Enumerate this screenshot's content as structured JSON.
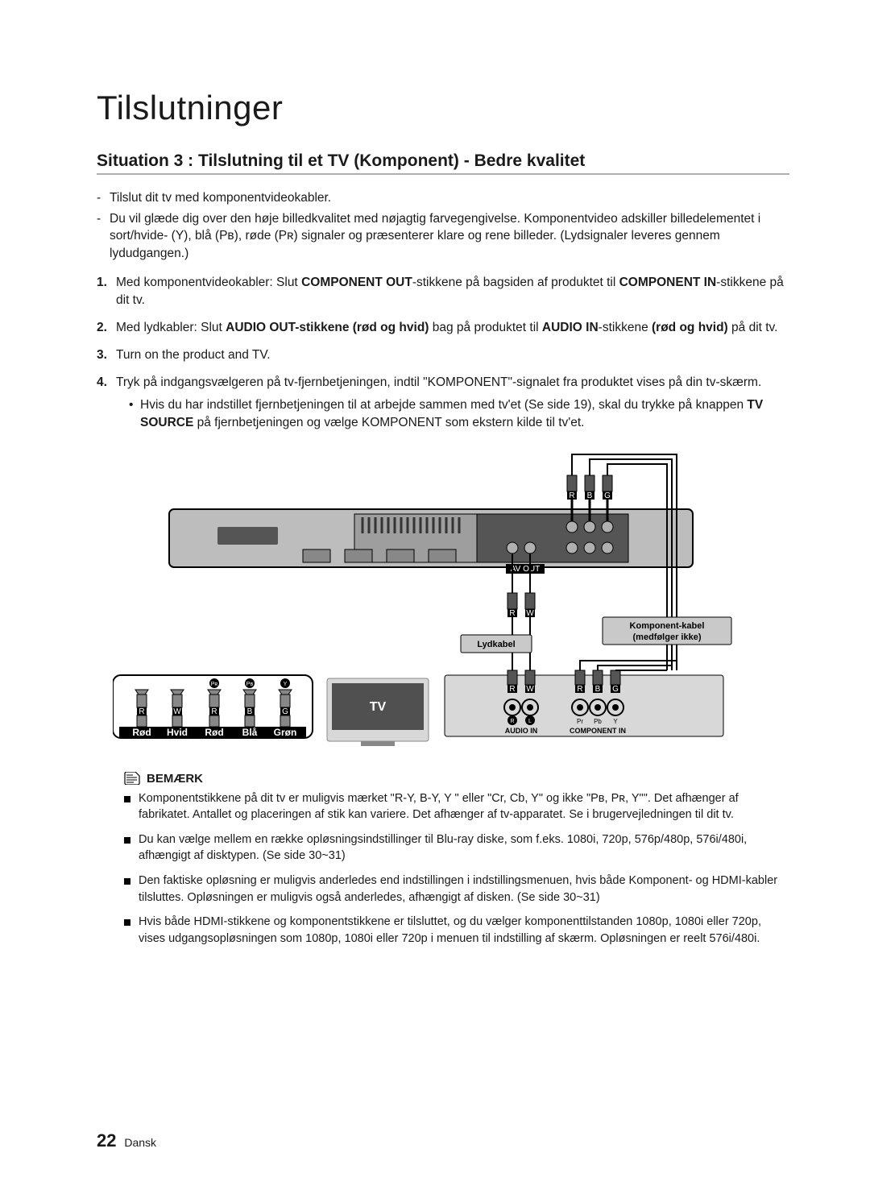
{
  "title": "Tilslutninger",
  "subtitle": "Situation 3 : Tilslutning til et TV (Komponent) - Bedre kvalitet",
  "intro": [
    "Tilslut dit tv med komponentvideokabler.",
    "Du vil glæde dig over den høje billedkvalitet med nøjagtig farvegengivelse. Komponentvideo adskiller billedelementet i sort/hvide- (Y), blå (Pʙ), røde (Pʀ) signaler og præsenterer klare og rene billeder. (Lydsignaler leveres gennem lydudgangen.)"
  ],
  "steps": [
    {
      "n": "1.",
      "html": "Med komponentvideokabler: Slut <b>COMPONENT OUT</b>-stikkene på bagsiden af produktet til <b>COMPONENT IN</b>-stikkene på dit tv."
    },
    {
      "n": "2.",
      "html": "Med lydkabler: Slut <b>AUDIO OUT-stikkene (rød og hvid)</b> bag på produktet til <b>AUDIO IN</b>-stikkene <b>(rød og hvid)</b> på dit tv."
    },
    {
      "n": "3.",
      "html": "Turn on the product and TV."
    },
    {
      "n": "4.",
      "html": "Tryk på indgangsvælgeren på tv-fjernbetjeningen, indtil \"KOMPONENT\"-signalet fra produktet vises på din tv-skærm."
    }
  ],
  "sub_bullet": "Hvis du har indstillet fjernbetjeningen til at arbejde sammen med tv'et (Se side 19), skal du trykke på knappen <b>TV SOURCE</b> på fjernbetjeningen og vælge KOMPONENT som ekstern kilde til tv'et.",
  "diagram": {
    "audio_cable_label": "Lydkabel",
    "component_cable_label_1": "Komponent-kabel",
    "component_cable_label_2": "(medfølger ikke)",
    "tv_label": "TV",
    "audio_in": "AUDIO IN",
    "component_in": "COMPONENT IN",
    "plug_group": {
      "top_small": [
        "Pʀ",
        "Pʙ",
        "Y"
      ],
      "rows": [
        "R",
        "W",
        "R",
        "B",
        "G"
      ],
      "bottom": [
        "Rød",
        "Hvid",
        "Rød",
        "Blå",
        "Grøn"
      ]
    },
    "av_out": "AV OUT",
    "tv_plugs": {
      "audio": [
        "R",
        "L"
      ],
      "rbg": [
        "R",
        "B",
        "G"
      ],
      "rbg_small": [
        "Pr",
        "Pb",
        "Y"
      ]
    },
    "top_rbg": [
      "R",
      "B",
      "G"
    ],
    "mid_rw": [
      "R",
      "W"
    ],
    "colors": {
      "black": "#000000",
      "grey_panel": "#c0c0c0",
      "dark_panel": "#606060",
      "light_panel": "#d8d8d8",
      "white": "#ffffff"
    }
  },
  "note_header": "BEMÆRK",
  "notes": [
    "Komponentstikkene på dit tv er muligvis mærket \"R-Y, B-Y, Y \" eller \"Cr, Cb, Y\" og ikke \"Pʙ, Pʀ, Y\"\". Det afhænger af fabrikatet. Antallet og placeringen af stik kan variere. Det afhænger af tv-apparatet. Se i brugervejledningen til dit tv.",
    "Du kan vælge mellem en række opløsningsindstillinger til Blu-ray diske, som f.eks. 1080i, 720p, 576p/480p, 576i/480i, afhængigt af disktypen. (Se side 30~31)",
    "Den faktiske opløsning er muligvis anderledes end indstillingen i indstillingsmenuen, hvis både Komponent- og HDMI-kabler tilsluttes. Opløsningen er muligvis også anderledes, afhængigt af disken. (Se side 30~31)",
    "Hvis både HDMI-stikkene og komponentstikkene er tilsluttet, og du vælger komponenttilstanden 1080p, 1080i eller 720p, vises udgangsopløsningen som 1080p, 1080i eller 720p i menuen til indstilling af skærm. Opløsningen er reelt 576i/480i."
  ],
  "footer": {
    "page": "22",
    "lang": "Dansk"
  }
}
